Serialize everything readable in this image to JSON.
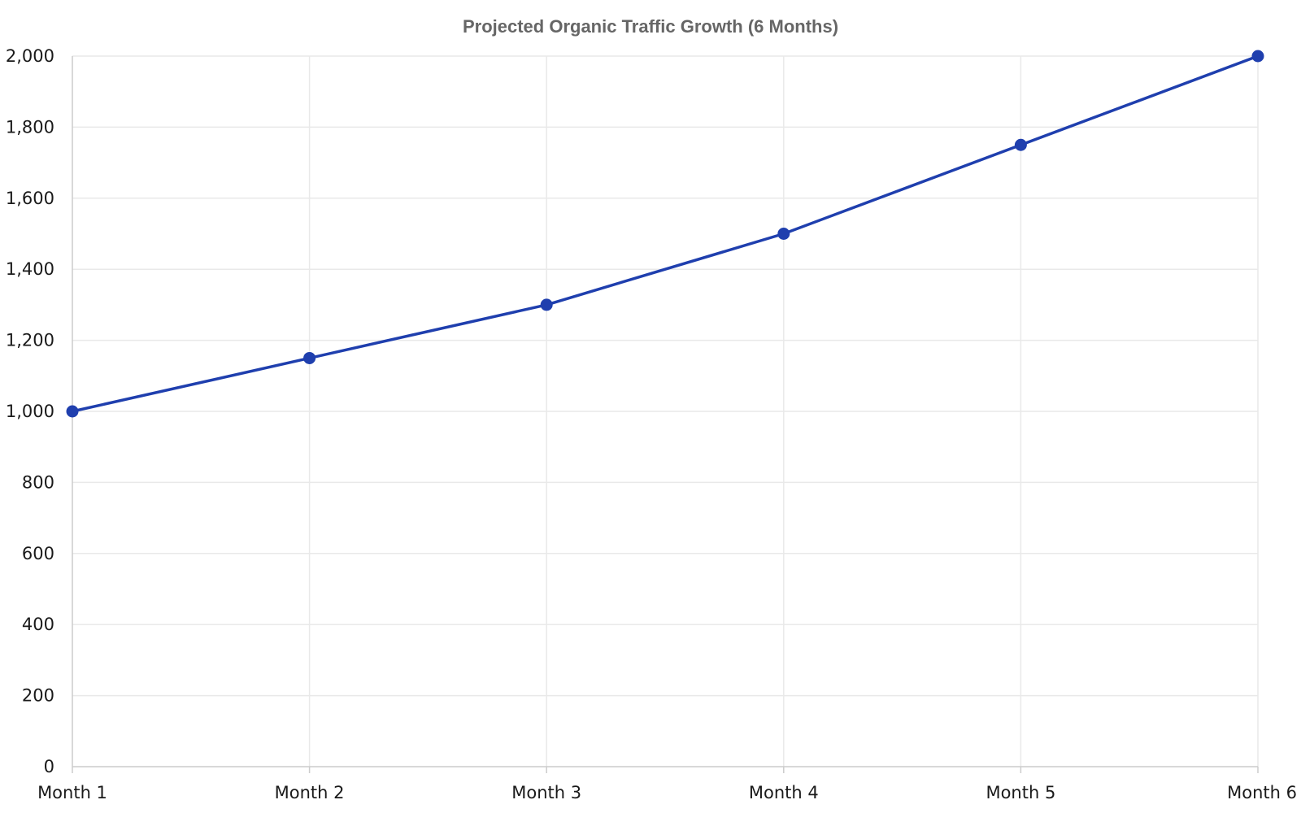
{
  "chart_data": {
    "type": "line",
    "title": "Projected Organic Traffic Growth (6 Months)",
    "xlabel": "",
    "ylabel": "",
    "categories": [
      "Month 1",
      "Month 2",
      "Month 3",
      "Month 4",
      "Month 5",
      "Month 6"
    ],
    "series": [
      {
        "values": [
          1000,
          1150,
          1300,
          1500,
          1750,
          2000
        ],
        "color": "#1f3fae"
      }
    ],
    "ylim": [
      0,
      2000
    ],
    "yticks": [
      0,
      200,
      400,
      600,
      800,
      1000,
      1200,
      1400,
      1600,
      1800,
      2000
    ],
    "ytick_labels": [
      "0",
      "200",
      "400",
      "600",
      "800",
      "1,000",
      "1,200",
      "1,400",
      "1,600",
      "1,800",
      "2,000"
    ],
    "grid": true,
    "legend": "none"
  }
}
